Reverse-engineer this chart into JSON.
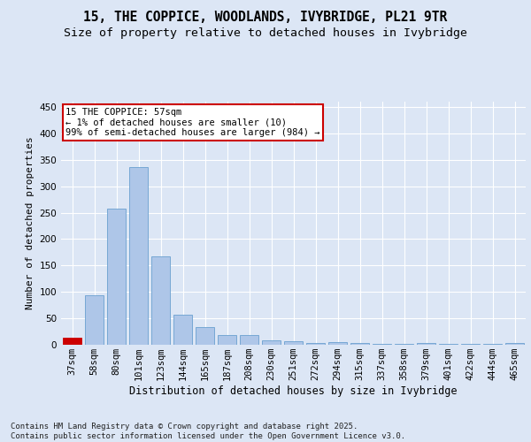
{
  "title": "15, THE COPPICE, WOODLANDS, IVYBRIDGE, PL21 9TR",
  "subtitle": "Size of property relative to detached houses in Ivybridge",
  "xlabel": "Distribution of detached houses by size in Ivybridge",
  "ylabel": "Number of detached properties",
  "categories": [
    "37sqm",
    "58sqm",
    "80sqm",
    "101sqm",
    "123sqm",
    "144sqm",
    "165sqm",
    "187sqm",
    "208sqm",
    "230sqm",
    "251sqm",
    "272sqm",
    "294sqm",
    "315sqm",
    "337sqm",
    "358sqm",
    "379sqm",
    "401sqm",
    "422sqm",
    "444sqm",
    "465sqm"
  ],
  "values": [
    13,
    93,
    258,
    337,
    168,
    57,
    34,
    19,
    19,
    8,
    6,
    4,
    5,
    4,
    1,
    1,
    4,
    1,
    1,
    1,
    3
  ],
  "bar_color": "#aec6e8",
  "bar_edgecolor": "#6aa0d0",
  "highlight_bar_index": 0,
  "highlight_color": "#cc0000",
  "highlight_edgecolor": "#cc0000",
  "annotation_box_text": "15 THE COPPICE: 57sqm\n← 1% of detached houses are smaller (10)\n99% of semi-detached houses are larger (984) →",
  "background_color": "#dce6f5",
  "grid_color": "#ffffff",
  "fig_background": "#dce6f5",
  "ylim": [
    0,
    460
  ],
  "yticks": [
    0,
    50,
    100,
    150,
    200,
    250,
    300,
    350,
    400,
    450
  ],
  "footer_text": "Contains HM Land Registry data © Crown copyright and database right 2025.\nContains public sector information licensed under the Open Government Licence v3.0.",
  "title_fontsize": 10.5,
  "subtitle_fontsize": 9.5,
  "xlabel_fontsize": 8.5,
  "ylabel_fontsize": 8,
  "tick_fontsize": 7.5,
  "annotation_fontsize": 7.5,
  "footer_fontsize": 6.5
}
